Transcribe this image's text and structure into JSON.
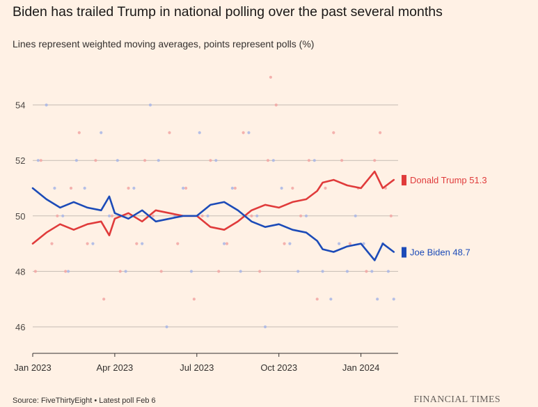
{
  "header": {
    "title": "Biden has trailed Trump in national polling over the past several months",
    "subtitle": "Lines represent weighted moving averages, points represent polls (%)"
  },
  "footer": {
    "source": "Source: FiveThirtyEight • Latest poll Feb 6",
    "brand": "FINANCIAL TIMES"
  },
  "colors": {
    "trump": "#e03b3b",
    "biden": "#1c4bb8",
    "trump_point": "#f2a6a3",
    "biden_point": "#a8b6e6",
    "grid": "#c6bcb3",
    "background": "#fff1e5"
  },
  "chart_data": {
    "type": "line",
    "title": "Biden has trailed Trump in national polling over the past several months",
    "subtitle": "Lines represent weighted moving averages, points represent polls (%)",
    "xlabel": "",
    "ylabel": "",
    "x_unit": "months since Jan 1 2023",
    "xlim": [
      0,
      13.2
    ],
    "ylim": [
      45.4,
      55
    ],
    "yticks": [
      46,
      48,
      50,
      52,
      54
    ],
    "xticks": [
      {
        "label": "Jan 2023",
        "value": 0
      },
      {
        "label": "Apr 2023",
        "value": 3
      },
      {
        "label": "Jul 2023",
        "value": 6
      },
      {
        "label": "Oct 2023",
        "value": 9
      },
      {
        "label": "Jan 2024",
        "value": 12
      }
    ],
    "grid": true,
    "legend": "end-of-line labels",
    "x": [
      0,
      0.5,
      1,
      1.5,
      2,
      2.5,
      2.8,
      3,
      3.5,
      4,
      4.5,
      5,
      5.5,
      6,
      6.5,
      7,
      7.5,
      8,
      8.5,
      9,
      9.5,
      10,
      10.4,
      10.6,
      11,
      11.5,
      12,
      12.5,
      12.8,
      13.2
    ],
    "series": [
      {
        "name": "Donald Trump",
        "end_label": "Donald Trump 51.3",
        "values": [
          49.0,
          49.4,
          49.7,
          49.5,
          49.7,
          49.8,
          49.3,
          49.9,
          50.1,
          49.8,
          50.2,
          50.1,
          50.0,
          50.0,
          49.6,
          49.5,
          49.8,
          50.2,
          50.4,
          50.3,
          50.5,
          50.6,
          50.9,
          51.2,
          51.3,
          51.1,
          51.0,
          51.6,
          51.0,
          51.3
        ]
      },
      {
        "name": "Joe Biden",
        "end_label": "Joe Biden 48.7",
        "values": [
          51.0,
          50.6,
          50.3,
          50.5,
          50.3,
          50.2,
          50.7,
          50.1,
          49.9,
          50.2,
          49.8,
          49.9,
          50.0,
          50.0,
          50.4,
          50.5,
          50.2,
          49.8,
          49.6,
          49.7,
          49.5,
          49.4,
          49.1,
          48.8,
          48.7,
          48.9,
          49.0,
          48.4,
          49.0,
          48.7
        ]
      }
    ],
    "polls": [
      {
        "candidate": "Donald Trump",
        "x": 0.1,
        "value": 48
      },
      {
        "candidate": "Donald Trump",
        "x": 0.3,
        "value": 52
      },
      {
        "candidate": "Donald Trump",
        "x": 0.7,
        "value": 49
      },
      {
        "candidate": "Donald Trump",
        "x": 0.9,
        "value": 50
      },
      {
        "candidate": "Donald Trump",
        "x": 1.2,
        "value": 48
      },
      {
        "candidate": "Donald Trump",
        "x": 1.4,
        "value": 51
      },
      {
        "candidate": "Donald Trump",
        "x": 1.7,
        "value": 53
      },
      {
        "candidate": "Donald Trump",
        "x": 2.0,
        "value": 49
      },
      {
        "candidate": "Donald Trump",
        "x": 2.3,
        "value": 52
      },
      {
        "candidate": "Donald Trump",
        "x": 2.6,
        "value": 47
      },
      {
        "candidate": "Donald Trump",
        "x": 2.9,
        "value": 50
      },
      {
        "candidate": "Donald Trump",
        "x": 3.2,
        "value": 48
      },
      {
        "candidate": "Donald Trump",
        "x": 3.5,
        "value": 51
      },
      {
        "candidate": "Donald Trump",
        "x": 3.8,
        "value": 49
      },
      {
        "candidate": "Donald Trump",
        "x": 4.1,
        "value": 52
      },
      {
        "candidate": "Donald Trump",
        "x": 4.4,
        "value": 50
      },
      {
        "candidate": "Donald Trump",
        "x": 4.7,
        "value": 48
      },
      {
        "candidate": "Donald Trump",
        "x": 5.0,
        "value": 53
      },
      {
        "candidate": "Donald Trump",
        "x": 5.3,
        "value": 49
      },
      {
        "candidate": "Donald Trump",
        "x": 5.6,
        "value": 51
      },
      {
        "candidate": "Donald Trump",
        "x": 5.9,
        "value": 47
      },
      {
        "candidate": "Donald Trump",
        "x": 6.2,
        "value": 50
      },
      {
        "candidate": "Donald Trump",
        "x": 6.5,
        "value": 52
      },
      {
        "candidate": "Donald Trump",
        "x": 6.8,
        "value": 48
      },
      {
        "candidate": "Donald Trump",
        "x": 7.1,
        "value": 49
      },
      {
        "candidate": "Donald Trump",
        "x": 7.4,
        "value": 51
      },
      {
        "candidate": "Donald Trump",
        "x": 7.7,
        "value": 53
      },
      {
        "candidate": "Donald Trump",
        "x": 8.0,
        "value": 50
      },
      {
        "candidate": "Donald Trump",
        "x": 8.3,
        "value": 48
      },
      {
        "candidate": "Donald Trump",
        "x": 8.6,
        "value": 52
      },
      {
        "candidate": "Donald Trump",
        "x": 8.9,
        "value": 54
      },
      {
        "candidate": "Donald Trump",
        "x": 9.2,
        "value": 49
      },
      {
        "candidate": "Donald Trump",
        "x": 9.5,
        "value": 51
      },
      {
        "candidate": "Donald Trump",
        "x": 9.8,
        "value": 50
      },
      {
        "candidate": "Donald Trump",
        "x": 10.1,
        "value": 52
      },
      {
        "candidate": "Donald Trump",
        "x": 10.4,
        "value": 47
      },
      {
        "candidate": "Donald Trump",
        "x": 10.7,
        "value": 51
      },
      {
        "candidate": "Donald Trump",
        "x": 11.0,
        "value": 53
      },
      {
        "candidate": "Donald Trump",
        "x": 11.3,
        "value": 52
      },
      {
        "candidate": "Donald Trump",
        "x": 11.6,
        "value": 49
      },
      {
        "candidate": "Donald Trump",
        "x": 11.9,
        "value": 51
      },
      {
        "candidate": "Donald Trump",
        "x": 12.2,
        "value": 48
      },
      {
        "candidate": "Donald Trump",
        "x": 12.5,
        "value": 52
      },
      {
        "candidate": "Donald Trump",
        "x": 12.7,
        "value": 53
      },
      {
        "candidate": "Donald Trump",
        "x": 12.9,
        "value": 51
      },
      {
        "candidate": "Donald Trump",
        "x": 13.1,
        "value": 50
      },
      {
        "candidate": "Donald Trump",
        "x": 8.7,
        "value": 55
      },
      {
        "candidate": "Joe Biden",
        "x": 0.2,
        "value": 52
      },
      {
        "candidate": "Joe Biden",
        "x": 0.5,
        "value": 54
      },
      {
        "candidate": "Joe Biden",
        "x": 0.8,
        "value": 51
      },
      {
        "candidate": "Joe Biden",
        "x": 1.1,
        "value": 50
      },
      {
        "candidate": "Joe Biden",
        "x": 1.3,
        "value": 48
      },
      {
        "candidate": "Joe Biden",
        "x": 1.6,
        "value": 52
      },
      {
        "candidate": "Joe Biden",
        "x": 1.9,
        "value": 51
      },
      {
        "candidate": "Joe Biden",
        "x": 2.2,
        "value": 49
      },
      {
        "candidate": "Joe Biden",
        "x": 2.5,
        "value": 53
      },
      {
        "candidate": "Joe Biden",
        "x": 2.8,
        "value": 50
      },
      {
        "candidate": "Joe Biden",
        "x": 3.1,
        "value": 52
      },
      {
        "candidate": "Joe Biden",
        "x": 3.4,
        "value": 48
      },
      {
        "candidate": "Joe Biden",
        "x": 3.7,
        "value": 51
      },
      {
        "candidate": "Joe Biden",
        "x": 4.0,
        "value": 49
      },
      {
        "candidate": "Joe Biden",
        "x": 4.3,
        "value": 54
      },
      {
        "candidate": "Joe Biden",
        "x": 4.6,
        "value": 52
      },
      {
        "candidate": "Joe Biden",
        "x": 4.9,
        "value": 46
      },
      {
        "candidate": "Joe Biden",
        "x": 5.2,
        "value": 50
      },
      {
        "candidate": "Joe Biden",
        "x": 5.5,
        "value": 51
      },
      {
        "candidate": "Joe Biden",
        "x": 5.8,
        "value": 48
      },
      {
        "candidate": "Joe Biden",
        "x": 6.1,
        "value": 53
      },
      {
        "candidate": "Joe Biden",
        "x": 6.4,
        "value": 50
      },
      {
        "candidate": "Joe Biden",
        "x": 6.7,
        "value": 52
      },
      {
        "candidate": "Joe Biden",
        "x": 7.0,
        "value": 49
      },
      {
        "candidate": "Joe Biden",
        "x": 7.3,
        "value": 51
      },
      {
        "candidate": "Joe Biden",
        "x": 7.6,
        "value": 48
      },
      {
        "candidate": "Joe Biden",
        "x": 7.9,
        "value": 53
      },
      {
        "candidate": "Joe Biden",
        "x": 8.2,
        "value": 50
      },
      {
        "candidate": "Joe Biden",
        "x": 8.5,
        "value": 46
      },
      {
        "candidate": "Joe Biden",
        "x": 8.8,
        "value": 52
      },
      {
        "candidate": "Joe Biden",
        "x": 9.1,
        "value": 51
      },
      {
        "candidate": "Joe Biden",
        "x": 9.4,
        "value": 49
      },
      {
        "candidate": "Joe Biden",
        "x": 9.7,
        "value": 48
      },
      {
        "candidate": "Joe Biden",
        "x": 10.0,
        "value": 50
      },
      {
        "candidate": "Joe Biden",
        "x": 10.3,
        "value": 52
      },
      {
        "candidate": "Joe Biden",
        "x": 10.6,
        "value": 48
      },
      {
        "candidate": "Joe Biden",
        "x": 10.9,
        "value": 47
      },
      {
        "candidate": "Joe Biden",
        "x": 11.2,
        "value": 49
      },
      {
        "candidate": "Joe Biden",
        "x": 11.5,
        "value": 48
      },
      {
        "candidate": "Joe Biden",
        "x": 11.8,
        "value": 50
      },
      {
        "candidate": "Joe Biden",
        "x": 12.1,
        "value": 49
      },
      {
        "candidate": "Joe Biden",
        "x": 12.4,
        "value": 48
      },
      {
        "candidate": "Joe Biden",
        "x": 12.6,
        "value": 47
      },
      {
        "candidate": "Joe Biden",
        "x": 12.8,
        "value": 49
      },
      {
        "candidate": "Joe Biden",
        "x": 13.0,
        "value": 48
      },
      {
        "candidate": "Joe Biden",
        "x": 13.2,
        "value": 47
      }
    ]
  }
}
